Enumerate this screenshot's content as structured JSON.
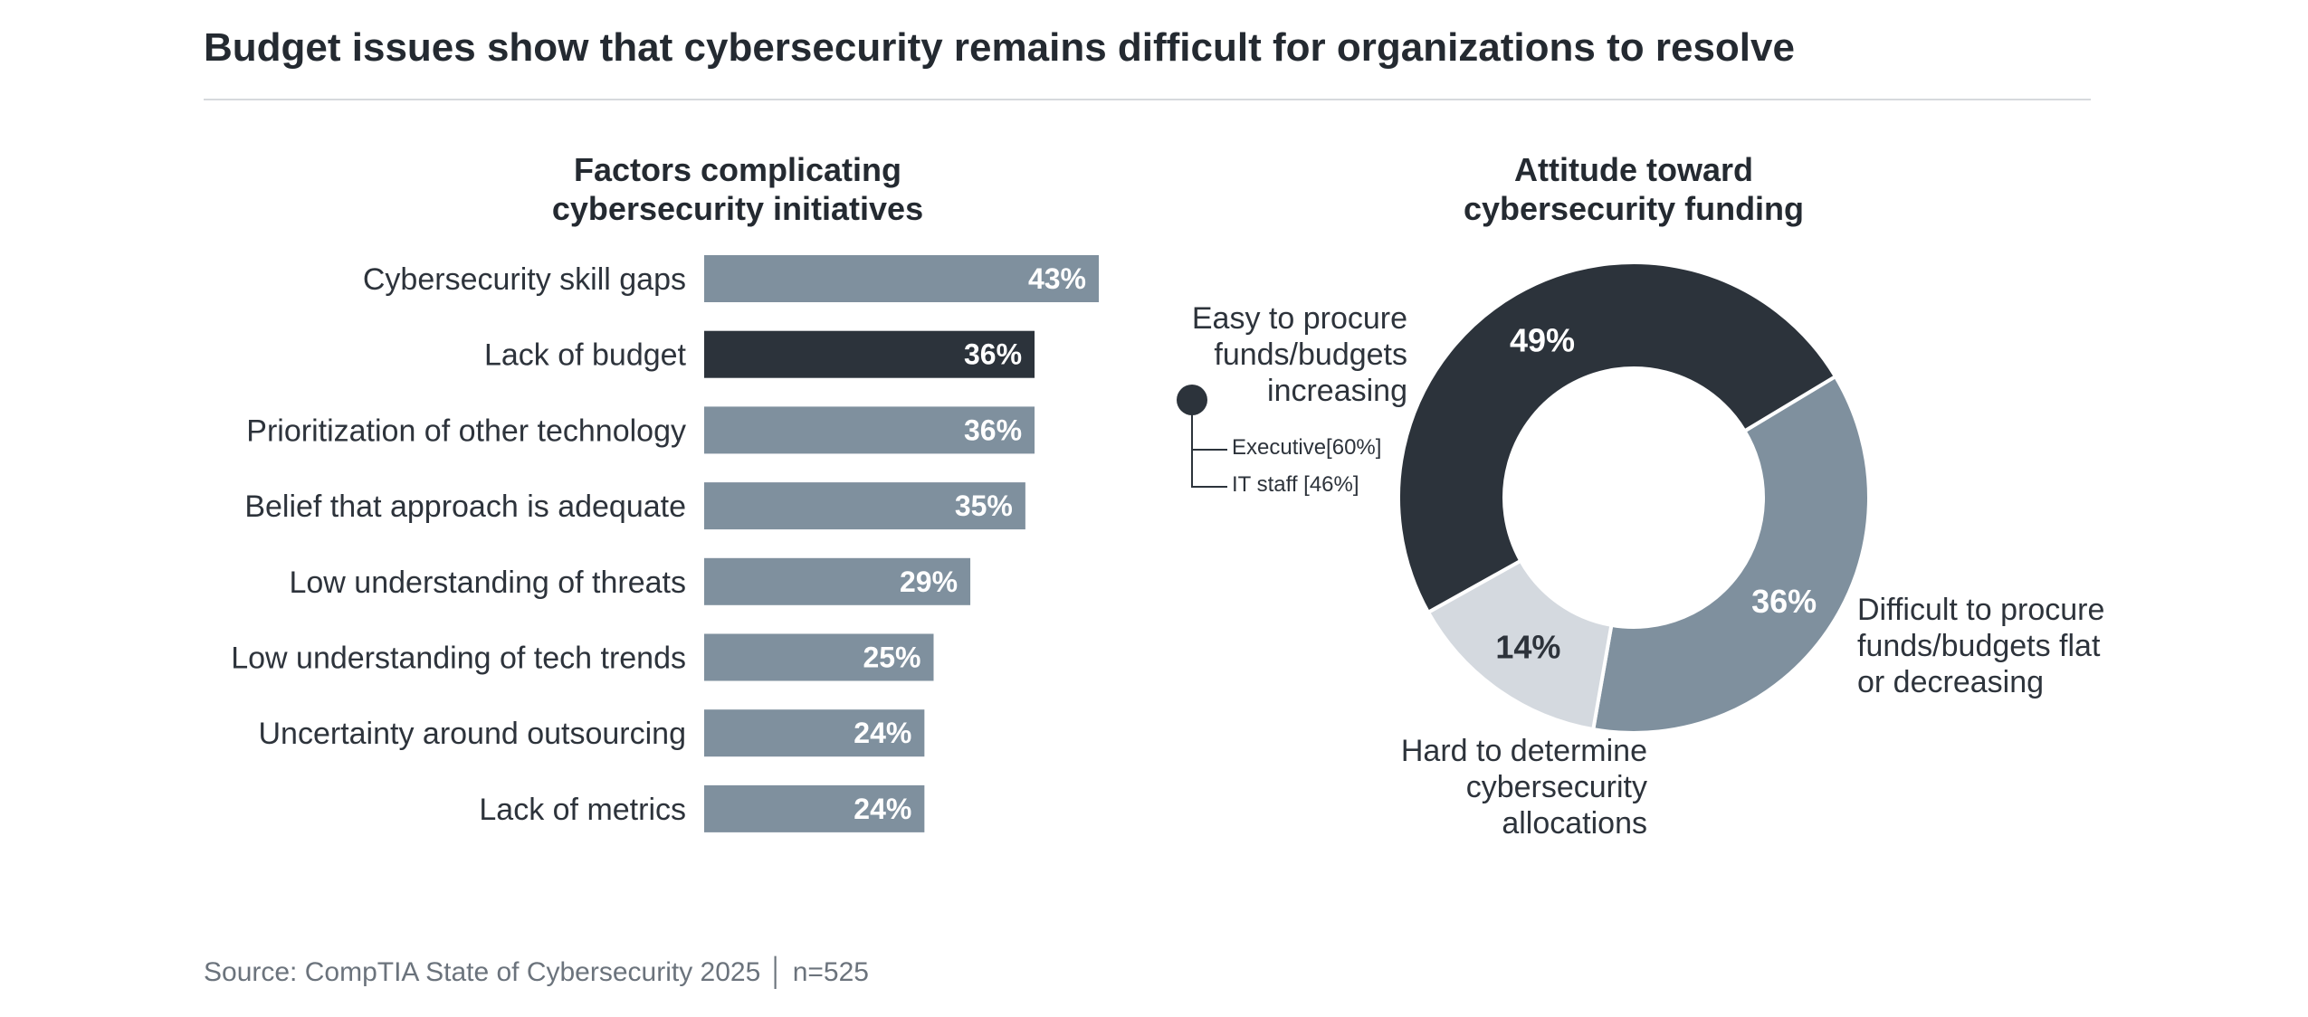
{
  "header": {
    "title": "Budget issues show that cybersecurity remains difficult for organizations to resolve"
  },
  "chart_data": [
    {
      "type": "bar",
      "orientation": "horizontal",
      "title_lines": [
        "Factors complicating",
        "cybersecurity initiatives"
      ],
      "categories": [
        "Cybersecurity skill gaps",
        "Lack of budget",
        "Prioritization of other technology",
        "Belief that approach is adequate",
        "Low understanding of threats",
        "Low understanding of tech trends",
        "Uncertainty around outsourcing",
        "Lack of metrics"
      ],
      "values": [
        43,
        36,
        36,
        35,
        29,
        25,
        24,
        24
      ],
      "value_labels": [
        "43%",
        "36%",
        "36%",
        "35%",
        "29%",
        "25%",
        "24%",
        "24%"
      ],
      "highlight_index": 1,
      "colors": {
        "default": "#7f909e",
        "highlight": "#2c333b"
      },
      "xlim": [
        0,
        43
      ],
      "grid": false
    },
    {
      "type": "pie",
      "variant": "donut",
      "title_lines": [
        "Attitude toward",
        "cybersecurity funding"
      ],
      "slices": [
        {
          "label_lines": [
            "Easy to procure",
            "funds/budgets",
            "increasing"
          ],
          "value": 49,
          "value_label": "49%",
          "color": "#2c333b",
          "text_color": "#ffffff",
          "breakdown": [
            {
              "label": "Executive[60%]",
              "value": 60
            },
            {
              "label": "IT staff [46%]",
              "value": 46
            }
          ]
        },
        {
          "label_lines": [
            "Difficult to procure",
            "funds/budgets flat",
            "or decreasing"
          ],
          "value": 36,
          "value_label": "36%",
          "color": "#7f909e",
          "text_color": "#ffffff"
        },
        {
          "label_lines": [
            "Hard to determine",
            "cybersecurity",
            "allocations"
          ],
          "value": 14,
          "value_label": "14%",
          "color": "#d4d9df",
          "text_color": "#2d333b"
        }
      ]
    }
  ],
  "footer": {
    "source": "Source: CompTIA State of Cybersecurity 2025 │ n=525"
  }
}
